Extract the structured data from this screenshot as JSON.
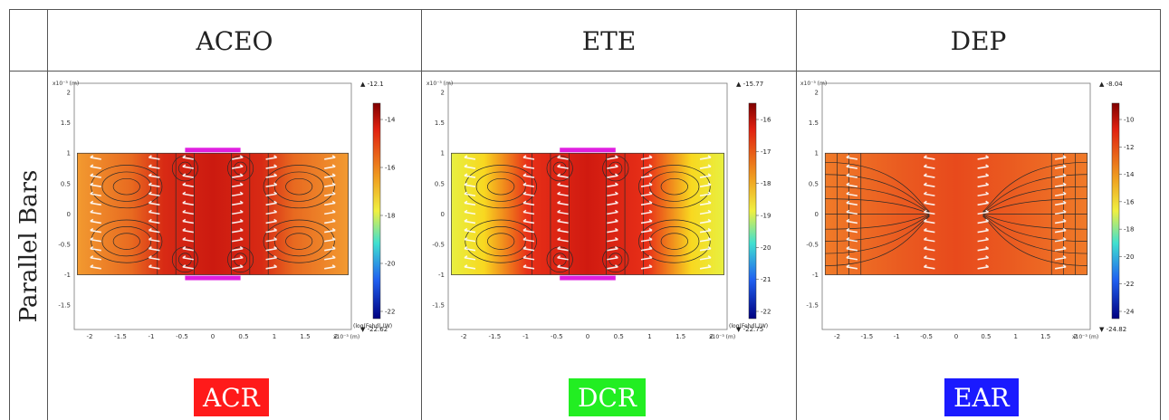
{
  "columns": [
    "ACEO",
    "ETE",
    "DEP"
  ],
  "row_label": "Parallel Bars",
  "panels": [
    {
      "id": "aceo",
      "cbar_max_label": "▲ -12.1",
      "cbar_min_label": "▼ -22.62",
      "cbar_ticks": [
        "-14",
        "-16",
        "-18",
        "-20",
        "-22"
      ],
      "cbar_title": "(log(Fehd) (W)",
      "tag": "ACR",
      "tag_color": "#ff1a1a",
      "has_electrodes": true,
      "style": "orange-red"
    },
    {
      "id": "ete",
      "cbar_max_label": "▲ -15.77",
      "cbar_min_label": "▼ -22.75",
      "cbar_ticks": [
        "-16",
        "-17",
        "-18",
        "-19",
        "-20",
        "-21",
        "-22"
      ],
      "cbar_title": "(log(Fehd) (W)",
      "tag": "DCR",
      "tag_color": "#22ee22",
      "has_electrodes": true,
      "style": "yellow-red"
    },
    {
      "id": "dep",
      "cbar_max_label": "▲ -8.04",
      "cbar_min_label": "▼ -24.82",
      "cbar_ticks": [
        "-10",
        "-12",
        "-14",
        "-16",
        "-18",
        "-20",
        "-22",
        "-24"
      ],
      "cbar_title": "",
      "tag": "EAR",
      "tag_color": "#1a1aff",
      "has_electrodes": false,
      "style": "orange"
    }
  ],
  "axes": {
    "x_ticks": [
      "-2",
      "-1.5",
      "-1",
      "-0.5",
      "0",
      "0.5",
      "1",
      "1.5",
      "2"
    ],
    "y_ticks": [
      "2",
      "1.5",
      "1",
      "0.5",
      "0",
      "-0.5",
      "-1",
      "-1.5"
    ],
    "x_unit": "x10⁻³ (m)",
    "y_unit": "x10⁻³ (m)"
  }
}
